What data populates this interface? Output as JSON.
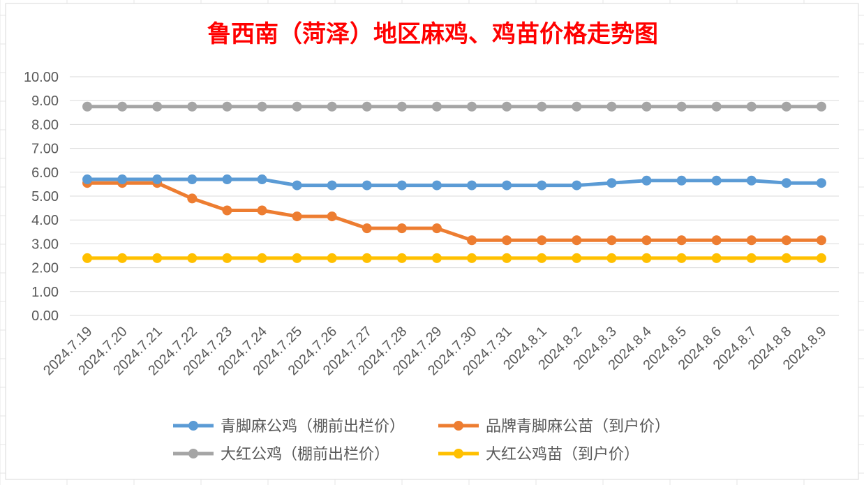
{
  "chart_data": {
    "type": "line",
    "title": "鲁西南（菏泽）地区麻鸡、鸡苗价格走势图",
    "xlabel": "",
    "ylabel": "",
    "ylim": [
      0,
      10
    ],
    "yticks": [
      "0.00",
      "1.00",
      "2.00",
      "3.00",
      "4.00",
      "5.00",
      "6.00",
      "7.00",
      "8.00",
      "9.00",
      "10.00"
    ],
    "categories": [
      "2024.7.19",
      "2024.7.20",
      "2024.7.21",
      "2024.7.22",
      "2024.7.23",
      "2024.7.24",
      "2024.7.25",
      "2024.7.26",
      "2024.7.27",
      "2024.7.28",
      "2024.7.29",
      "2024.7.30",
      "2024.7.31",
      "2024.8.1",
      "2024.8.2",
      "2024.8.3",
      "2024.8.4",
      "2024.8.5",
      "2024.8.6",
      "2024.8.7",
      "2024.8.8",
      "2024.8.9"
    ],
    "series": [
      {
        "name": "青脚麻公鸡（棚前出栏价）",
        "color": "#5b9bd5",
        "values": [
          5.7,
          5.7,
          5.7,
          5.7,
          5.7,
          5.7,
          5.45,
          5.45,
          5.45,
          5.45,
          5.45,
          5.45,
          5.45,
          5.45,
          5.45,
          5.55,
          5.65,
          5.65,
          5.65,
          5.65,
          5.55,
          5.55
        ]
      },
      {
        "name": "品牌青脚麻公苗（到户价）",
        "color": "#ed7d31",
        "values": [
          5.55,
          5.55,
          5.55,
          4.9,
          4.4,
          4.4,
          4.15,
          4.15,
          3.65,
          3.65,
          3.65,
          3.15,
          3.15,
          3.15,
          3.15,
          3.15,
          3.15,
          3.15,
          3.15,
          3.15,
          3.15,
          3.15
        ]
      },
      {
        "name": "大红公鸡（棚前出栏价）",
        "color": "#a5a5a5",
        "values": [
          8.75,
          8.75,
          8.75,
          8.75,
          8.75,
          8.75,
          8.75,
          8.75,
          8.75,
          8.75,
          8.75,
          8.75,
          8.75,
          8.75,
          8.75,
          8.75,
          8.75,
          8.75,
          8.75,
          8.75,
          8.75,
          8.75
        ]
      },
      {
        "name": "大红公鸡苗（到户价）",
        "color": "#ffc000",
        "values": [
          2.4,
          2.4,
          2.4,
          2.4,
          2.4,
          2.4,
          2.4,
          2.4,
          2.4,
          2.4,
          2.4,
          2.4,
          2.4,
          2.4,
          2.4,
          2.4,
          2.4,
          2.4,
          2.4,
          2.4,
          2.4,
          2.4
        ]
      }
    ],
    "grid": true,
    "legend": "bottom"
  },
  "colors": {
    "title": "#ff0000",
    "axis_text": "#595959",
    "gridline": "#d9d9d9",
    "sheet_grid": "#e6e6e6"
  }
}
